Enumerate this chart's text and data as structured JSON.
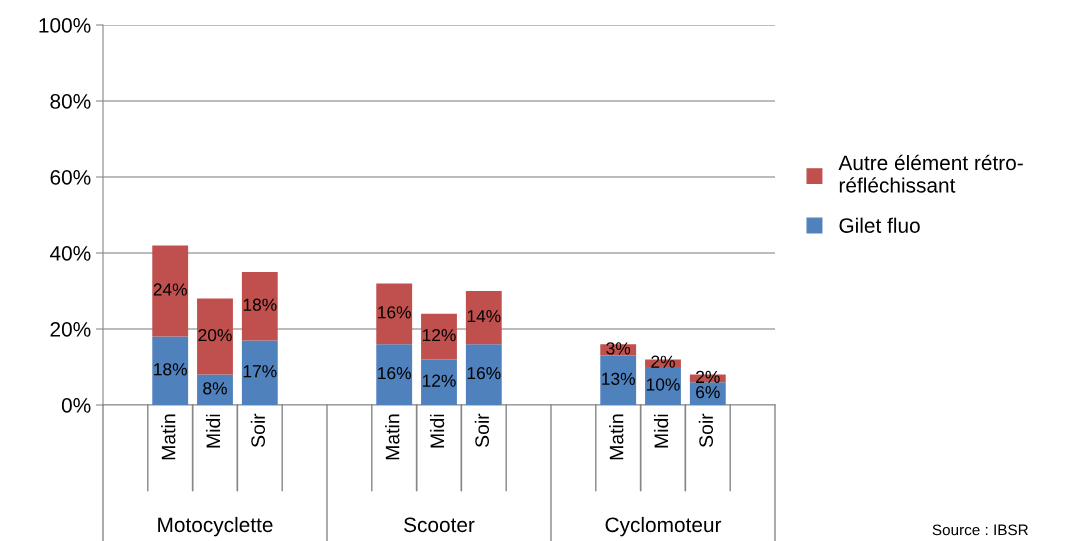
{
  "chart_data": {
    "type": "bar",
    "stacked": true,
    "categories": [
      "Matin",
      "Midi",
      "Soir",
      null,
      null,
      "Matin",
      "Midi",
      "Soir",
      null,
      null,
      "Matin",
      "Midi",
      "Soir"
    ],
    "series": [
      {
        "name": "Gilet fluo",
        "color": "#4f81bd",
        "values": [
          18,
          8,
          17,
          null,
          null,
          16,
          12,
          16,
          null,
          null,
          13,
          10,
          6
        ],
        "value_labels": [
          "18%",
          "8%",
          "17%",
          null,
          null,
          "16%",
          "12%",
          "16%",
          null,
          null,
          "13%",
          "10%",
          "6%"
        ]
      },
      {
        "name": "Autre élément rétro-\nréfléchissant",
        "color": "#c0504d",
        "values": [
          24,
          20,
          18,
          null,
          null,
          16,
          12,
          14,
          null,
          null,
          3,
          2,
          2
        ],
        "value_labels": [
          "24%",
          "20%",
          "18%",
          null,
          null,
          "16%",
          "12%",
          "14%",
          null,
          null,
          "3%",
          "2%",
          "2%"
        ]
      }
    ],
    "ylim": [
      0,
      100
    ],
    "yticks": [
      {
        "value": 0,
        "label": "0%"
      },
      {
        "value": 20,
        "label": "20%"
      },
      {
        "value": 40,
        "label": "40%"
      },
      {
        "value": 60,
        "label": "60%"
      },
      {
        "value": 80,
        "label": "80%"
      },
      {
        "value": 100,
        "label": "100%"
      }
    ],
    "grid": "y",
    "legend": "right",
    "annotations": [
      "Motocyclette",
      "Scooter",
      "Cyclomoteur",
      "Source : IBSR"
    ]
  }
}
